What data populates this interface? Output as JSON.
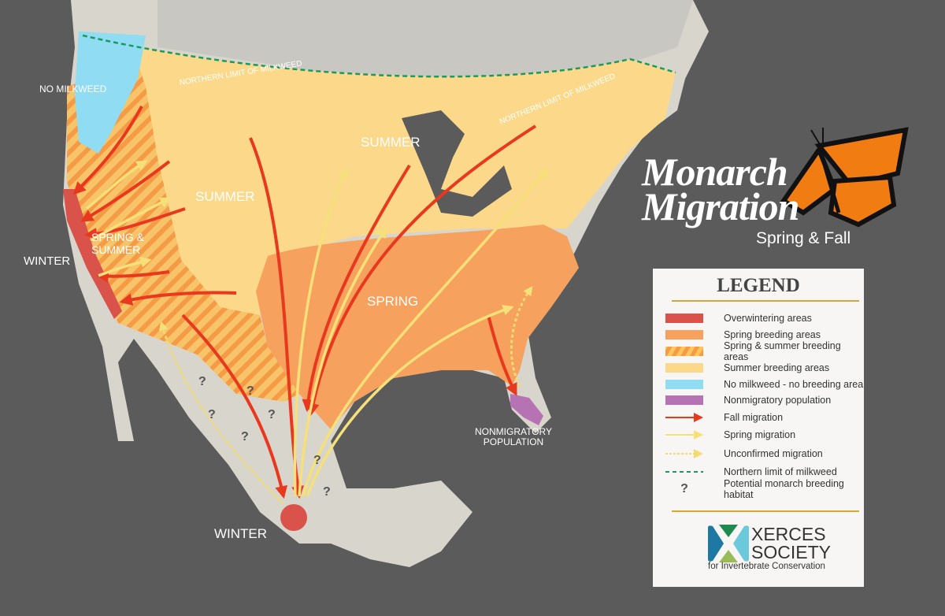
{
  "title": {
    "line1": "Monarch",
    "line2": "Migration",
    "subtitle": "Spring & Fall"
  },
  "map_labels": {
    "no_milkweed": "NO MILKWEED",
    "northern_limit_west": "NORTHERN LIMIT OF MILKWEED",
    "northern_limit_east": "NORTHERN LIMIT OF MILKWEED",
    "summer_east": "SUMMER",
    "summer_west": "SUMMER",
    "spring_summer_1": "SPRING &",
    "spring_summer_2": "SUMMER",
    "winter_west": "WINTER",
    "spring": "SPRING",
    "winter_mexico": "WINTER",
    "nonmigratory_1": "NONMIGRATORY",
    "nonmigratory_2": "POPULATION",
    "question_mark": "?"
  },
  "legend": {
    "title": "LEGEND",
    "items": [
      {
        "label": "Overwintering areas",
        "color": "#d9534a"
      },
      {
        "label": "Spring breeding areas",
        "color": "#f6a15e"
      },
      {
        "label": "Spring & summer breeding areas",
        "color": "#f7a23a"
      },
      {
        "label": "Summer breeding areas",
        "color": "#fcd98a"
      },
      {
        "label": "No milkweed - no breeding area",
        "color": "#8fdcf3"
      },
      {
        "label": "Nonmigratory population",
        "color": "#b673b4"
      },
      {
        "label": "Fall migration",
        "color": "#e8381e"
      },
      {
        "label": "Spring migration",
        "color": "#f6e07a"
      },
      {
        "label": "Unconfirmed migration",
        "color": "#f2dc72"
      },
      {
        "label": "Northern limit of milkweed",
        "color": "#1a9b5e"
      },
      {
        "label": "Potential monarch breeding habitat",
        "icon": "question-mark-icon"
      }
    ],
    "logo": {
      "line1": "XERCES",
      "line2": "SOCIETY",
      "tagline": "for Invertebrate Conservation"
    }
  }
}
